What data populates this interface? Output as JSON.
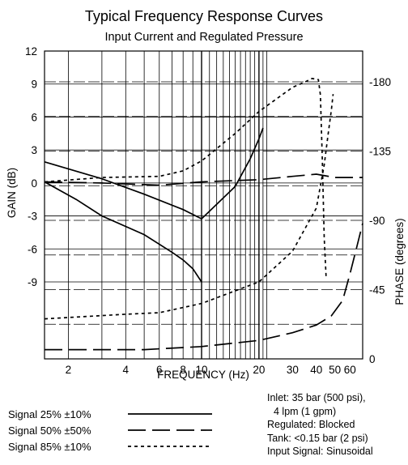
{
  "chart_data": {
    "type": "line",
    "title": "Typical Frequency Response Curves",
    "subtitle": "Input Current and Regulated Pressure",
    "xlabel": "FREQUENCY (Hz)",
    "ylabel_left": "GAIN (dB)",
    "ylabel_right": "PHASE (degrees)",
    "x_scale": "log",
    "xlim": [
      1.5,
      70
    ],
    "x_ticks": [
      2,
      4,
      6,
      8,
      10,
      20,
      30,
      40,
      50,
      60
    ],
    "ylim_left": [
      -16,
      12
    ],
    "y_ticks_left": [
      12,
      9,
      6,
      3,
      0,
      -3,
      -6,
      -9
    ],
    "ylim_right": [
      0,
      200
    ],
    "y_ticks_right": [
      -180,
      -135,
      -90,
      -45,
      0
    ],
    "grid": true,
    "series": [
      {
        "name": "Signal 25% ±10%",
        "style": "solid",
        "gain": [
          [
            1.5,
            0.1
          ],
          [
            2.2,
            -1.5
          ],
          [
            3,
            -3
          ],
          [
            5,
            -4.7
          ],
          [
            7,
            -6.3
          ],
          [
            8,
            -7
          ],
          [
            9,
            -7.8
          ],
          [
            10,
            -9
          ]
        ],
        "phase": [
          [
            1.5,
            128
          ],
          [
            3,
            117
          ],
          [
            5,
            107
          ],
          [
            8,
            97
          ],
          [
            10,
            91
          ],
          [
            15,
            112
          ],
          [
            18,
            130
          ],
          [
            20,
            143
          ],
          [
            21,
            150
          ]
        ]
      },
      {
        "name": "Signal 50% ±50%",
        "style": "long-dash",
        "gain": [
          [
            1.5,
            0.1
          ],
          [
            3,
            0
          ],
          [
            6,
            -0.2
          ],
          [
            10,
            0.1
          ],
          [
            20,
            0.3
          ],
          [
            30,
            0.6
          ],
          [
            40,
            0.8
          ],
          [
            50,
            0.5
          ],
          [
            70,
            0.5
          ]
        ],
        "phase": [
          [
            1.5,
            6
          ],
          [
            5,
            6
          ],
          [
            10,
            8
          ],
          [
            20,
            12
          ],
          [
            30,
            17
          ],
          [
            40,
            22
          ],
          [
            48,
            28
          ],
          [
            55,
            38
          ],
          [
            60,
            55
          ],
          [
            65,
            72
          ],
          [
            70,
            88
          ]
        ]
      },
      {
        "name": "Signal 85% ±10%",
        "style": "short-dash",
        "gain": [
          [
            1.5,
            0.1
          ],
          [
            3,
            0.5
          ],
          [
            6,
            0.6
          ],
          [
            8,
            1.1
          ],
          [
            10,
            2
          ],
          [
            15,
            4.5
          ],
          [
            20,
            6.5
          ],
          [
            30,
            8.7
          ],
          [
            35,
            9.2
          ],
          [
            38,
            9.5
          ],
          [
            41,
            9.4
          ],
          [
            42,
            8
          ],
          [
            43,
            2
          ],
          [
            44,
            -5
          ],
          [
            45,
            -8.5
          ]
        ],
        "phase": [
          [
            1.5,
            26
          ],
          [
            4,
            29
          ],
          [
            6,
            30
          ],
          [
            10,
            36
          ],
          [
            20,
            50
          ],
          [
            30,
            70
          ],
          [
            40,
            98
          ],
          [
            44,
            126
          ],
          [
            46,
            145
          ],
          [
            48,
            162
          ],
          [
            49,
            172
          ]
        ]
      }
    ]
  },
  "notes": [
    "Inlet: 35 bar (500 psi),",
    "  4 lpm (1 gpm)",
    "Regulated: Blocked",
    "Tank: <0.15 bar (2 psi)",
    "Input Signal: Sinusoidal"
  ]
}
